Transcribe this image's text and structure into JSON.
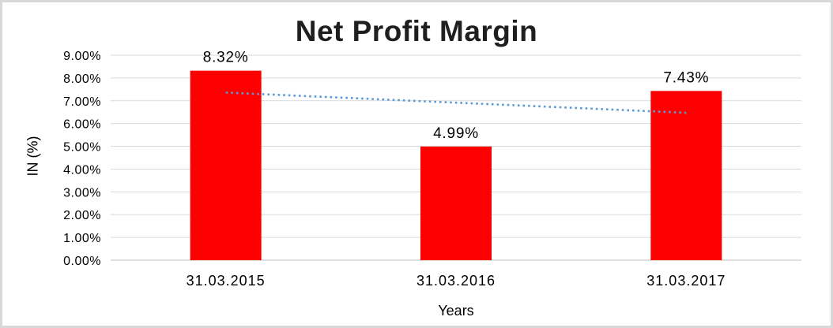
{
  "chart": {
    "title": "Net Profit Margin",
    "y_axis_title": "IN (%)",
    "x_axis_title": "Years"
  },
  "chart_data": {
    "type": "bar",
    "title": "Net Profit Margin",
    "xlabel": "Years",
    "ylabel": "IN (%)",
    "categories": [
      "31.03.2015",
      "31.03.2016",
      "31.03.2017"
    ],
    "values": [
      8.32,
      4.99,
      7.43
    ],
    "data_labels": [
      "8.32%",
      "4.99%",
      "7.43%"
    ],
    "ylim": [
      0,
      9
    ],
    "grid": true,
    "legend": "none",
    "y_ticks": [
      {
        "value": 0,
        "label": "0.00%"
      },
      {
        "value": 1,
        "label": "1.00%"
      },
      {
        "value": 2,
        "label": "2.00%"
      },
      {
        "value": 3,
        "label": "3.00%"
      },
      {
        "value": 4,
        "label": "4.00%"
      },
      {
        "value": 5,
        "label": "5.00%"
      },
      {
        "value": 6,
        "label": "6.00%"
      },
      {
        "value": 7,
        "label": "7.00%"
      },
      {
        "value": 8,
        "label": "8.00%"
      },
      {
        "value": 9,
        "label": "9.00%"
      }
    ],
    "trendline": {
      "type": "linear",
      "style": "dotted",
      "start_value": 7.36,
      "end_value": 6.47
    },
    "colors": {
      "bar": "#ff0000",
      "trendline": "#5b9bd5",
      "gridline": "#d9d9d9",
      "axis_line": "#bfbfbf",
      "text": "#000000",
      "title_text": "#1f1f1f",
      "border": "#d8d8d8",
      "background": "#ffffff"
    }
  }
}
